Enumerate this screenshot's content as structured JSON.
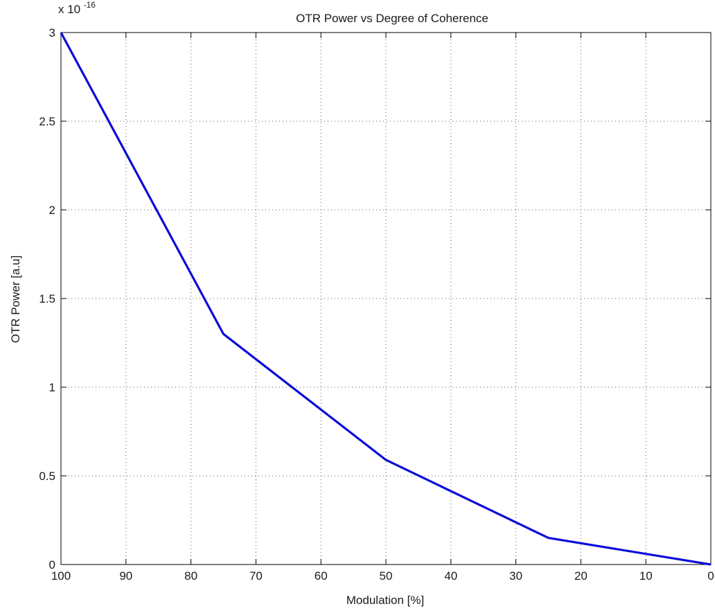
{
  "chart_data": {
    "type": "line",
    "title": "OTR Power vs Degree of Coherence",
    "xlabel": "Modulation [%]",
    "ylabel": "OTR Power [a.u]",
    "y_multiplier": {
      "base": "x 10",
      "exponent": "-16"
    },
    "xlim": [
      100,
      0
    ],
    "x_reversed": true,
    "ylim": [
      0,
      3
    ],
    "grid": true,
    "grid_style": "dotted",
    "x_ticks": [
      100,
      90,
      80,
      70,
      60,
      50,
      40,
      30,
      20,
      10,
      0
    ],
    "x_tick_labels": [
      "100",
      "90",
      "80",
      "70",
      "60",
      "50",
      "40",
      "30",
      "20",
      "10",
      "0"
    ],
    "y_ticks": [
      0,
      0.5,
      1,
      1.5,
      2,
      2.5,
      3
    ],
    "y_tick_labels": [
      "0",
      "0.5",
      "1",
      "1.5",
      "2",
      "2.5",
      "3"
    ],
    "series": [
      {
        "color": "#0b0bd9",
        "x": [
          100,
          75,
          50,
          25,
          0
        ],
        "y": [
          3.0,
          1.3,
          0.59,
          0.15,
          0.0
        ]
      }
    ]
  }
}
